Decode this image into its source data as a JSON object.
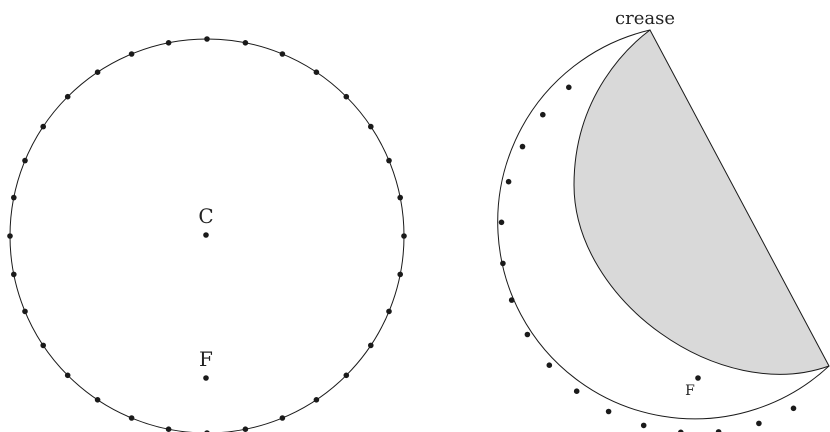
{
  "left_figure": {
    "center_label": "C",
    "focus_label": "F",
    "boundary_dot_count": 32
  },
  "right_figure": {
    "crease_label": "crease",
    "focus_label": "F",
    "flap_fill": "#d9d9d9"
  },
  "colors": {
    "ink": "#1a1a1a",
    "flap": "#d9d9d9",
    "background": "#ffffff"
  }
}
